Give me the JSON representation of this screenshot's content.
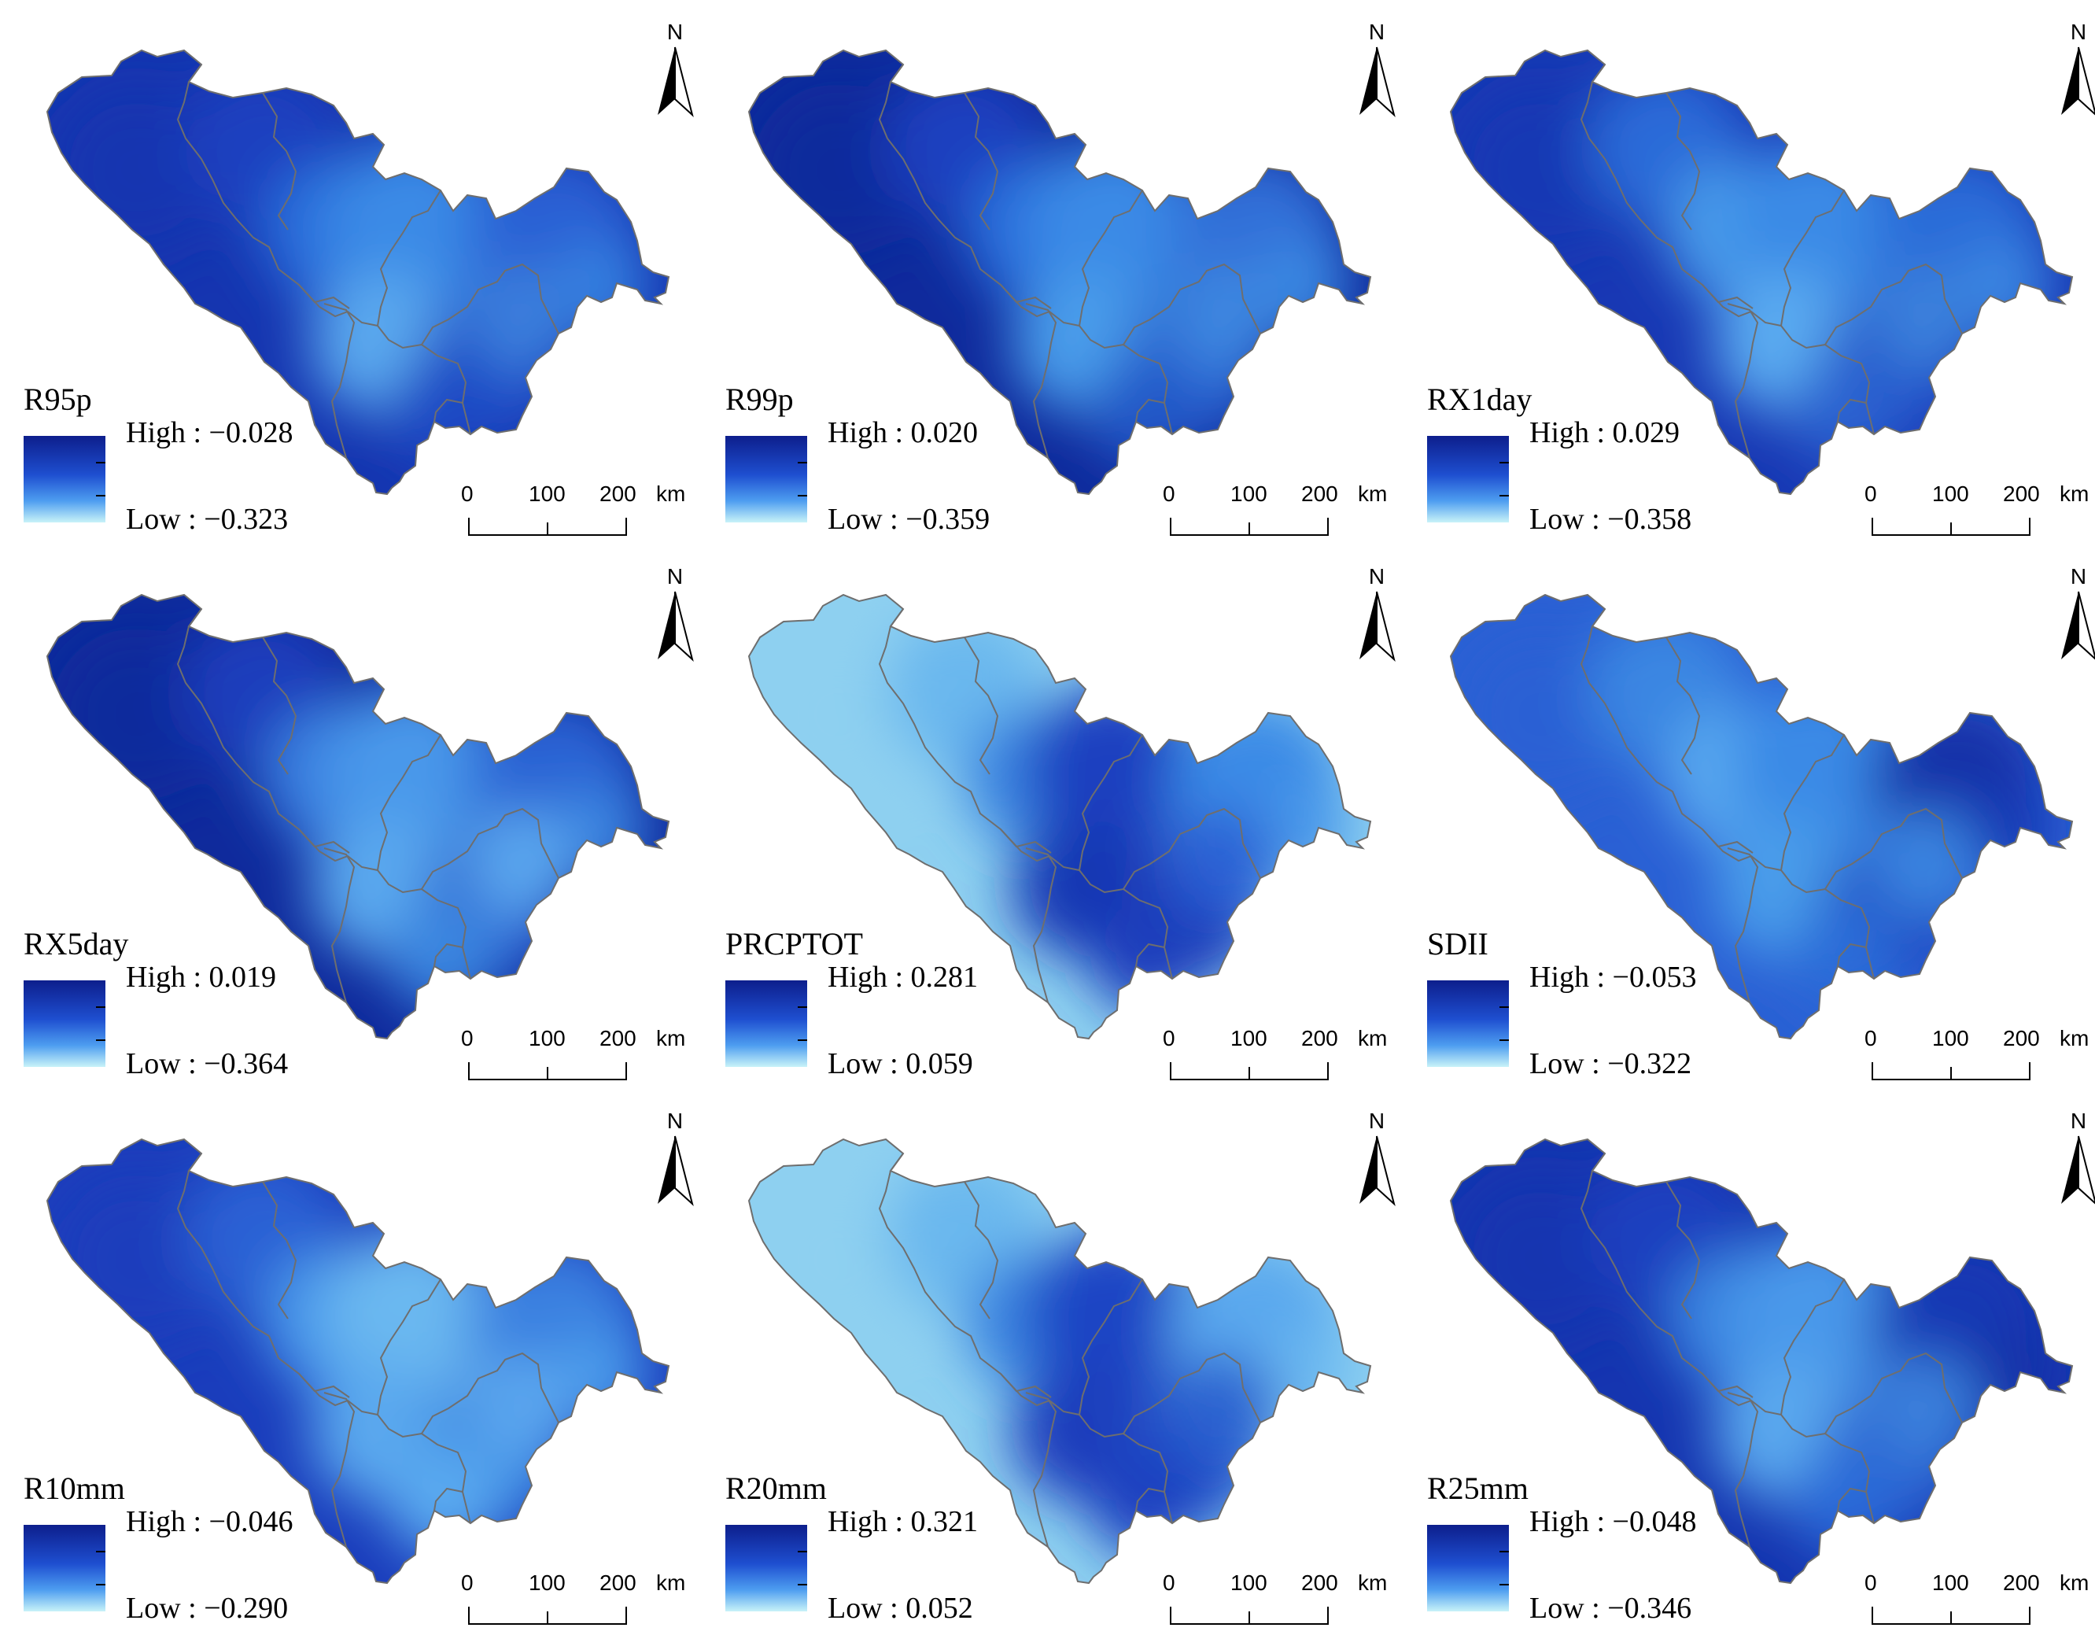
{
  "panels": [
    {
      "index": "R95p",
      "legend": {
        "high_label": "High : −0.028",
        "low_label": "Low : −0.323"
      },
      "colors": [
        "#1535b0",
        "#1a3fbf",
        "#2a6fdc",
        "#3a8ae6",
        "#5aa8ee",
        "#2a60d4",
        "#3580e0",
        "#2050c8",
        "#1a48c4",
        "#3a7edc"
      ]
    },
    {
      "index": "R99p",
      "legend": {
        "high_label": "High : 0.020",
        "low_label": "Low : −0.359"
      },
      "colors": [
        "#0f2a9c",
        "#1a3fbf",
        "#2a6fdc",
        "#3a8ae6",
        "#4a9cea",
        "#3070d8",
        "#3a88e2",
        "#2a64d0",
        "#2458c8",
        "#3e86e0"
      ]
    },
    {
      "index": "RX1day",
      "legend": {
        "high_label": "High : 0.029",
        "low_label": "Low : −0.358"
      },
      "colors": [
        "#1838b4",
        "#2a6ad8",
        "#4a9cea",
        "#3a8ae6",
        "#5aaaf0",
        "#2a6cd8",
        "#3a86e2",
        "#2050c8",
        "#2a62d0",
        "#3a80dc"
      ]
    },
    {
      "index": "RX5day",
      "legend": {
        "high_label": "High : 0.019",
        "low_label": "Low : −0.364"
      },
      "colors": [
        "#0f2a9c",
        "#1a3dbc",
        "#3a80e0",
        "#4a98ea",
        "#5aa8ee",
        "#2a64d4",
        "#3a84e0",
        "#2a5ed0",
        "#3a86e0",
        "#5aa6ee"
      ]
    },
    {
      "index": "PRCPTOT",
      "legend": {
        "high_label": "High : 0.281",
        "low_label": "Low : 0.059"
      },
      "colors": [
        "#8ed0f0",
        "#6ab8ee",
        "#3a84e0",
        "#1a40c0",
        "#1838b4",
        "#3a8ae6",
        "#4a98ea",
        "#1c3ab8",
        "#1a3cbc",
        "#2a60d4"
      ]
    },
    {
      "index": "SDII",
      "legend": {
        "high_label": "High : −0.053",
        "low_label": "Low : −0.322"
      },
      "colors": [
        "#2a60d4",
        "#3a86e2",
        "#5aaaf0",
        "#3a8ae6",
        "#4a9cea",
        "#1430a8",
        "#1838b4",
        "#1a3fbf",
        "#2a6cd8",
        "#3a84e0"
      ]
    },
    {
      "index": "R10mm",
      "legend": {
        "high_label": "High : −0.046",
        "low_label": "Low : −0.290"
      },
      "colors": [
        "#1a3dbc",
        "#2a60d4",
        "#4a98ea",
        "#6ab8f0",
        "#5aa8ee",
        "#3a80e0",
        "#4a9aea",
        "#3a88e2",
        "#5aaaf0",
        "#5aa6ee"
      ]
    },
    {
      "index": "R20mm",
      "legend": {
        "high_label": "High : 0.321",
        "low_label": "Low : 0.052"
      },
      "colors": [
        "#8ed0f0",
        "#6ab8ee",
        "#3a84e0",
        "#1a44c4",
        "#1a3cbc",
        "#5aa8ee",
        "#6ab8f0",
        "#2050c8",
        "#1a40c0",
        "#2a62d0"
      ]
    },
    {
      "index": "R25mm",
      "legend": {
        "high_label": "High : −0.048",
        "low_label": "Low : −0.346"
      },
      "colors": [
        "#1535b0",
        "#1a3fbf",
        "#3a84e0",
        "#4a98ea",
        "#5aa8ee",
        "#1838b4",
        "#1430a8",
        "#2a62d0",
        "#2a6ad8",
        "#3a80dc"
      ]
    }
  ],
  "north_label": "N",
  "scale": {
    "ticks": [
      "0",
      "100",
      "200"
    ],
    "unit": "km"
  }
}
